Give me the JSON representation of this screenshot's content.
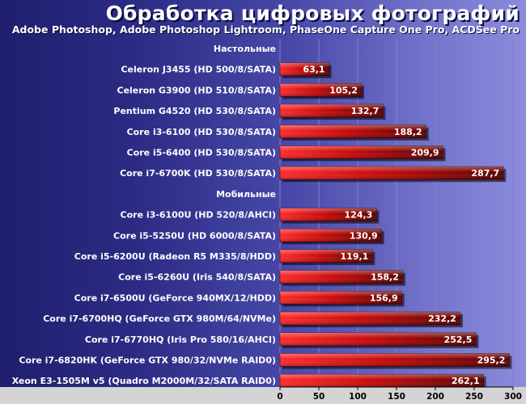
{
  "title": "Обработка цифровых фотографий",
  "subtitle": "Adobe Photoshop, Adobe Photoshop Lightroom, PhaseOne Capture One Pro, ACDSee Pro",
  "colors": {
    "bar_light": "#ff2a2a",
    "bar_dark": "#5a0000",
    "axis_band": "#d4d4d4",
    "gridline": "#8080c8"
  },
  "chart_data": {
    "type": "bar",
    "orientation": "horizontal",
    "title": "Обработка цифровых фотографий",
    "subtitle": "Adobe Photoshop, Adobe Photoshop Lightroom, PhaseOne Capture One Pro, ACDSee Pro",
    "xlim": [
      0,
      300
    ],
    "xticks": [
      0,
      50,
      100,
      150,
      200,
      250,
      300
    ],
    "grid": true,
    "rows": [
      {
        "kind": "group",
        "label": "Настольные"
      },
      {
        "kind": "bar",
        "label": "Celeron J3455 (HD 500/8/SATA)",
        "value": 63.1,
        "value_label": "63,1"
      },
      {
        "kind": "bar",
        "label": "Celeron G3900 (HD 510/8/SATA)",
        "value": 105.2,
        "value_label": "105,2"
      },
      {
        "kind": "bar",
        "label": "Pentium G4520 (HD 530/8/SATA)",
        "value": 132.7,
        "value_label": "132,7"
      },
      {
        "kind": "bar",
        "label": "Core i3-6100 (HD 530/8/SATA)",
        "value": 188.2,
        "value_label": "188,2"
      },
      {
        "kind": "bar",
        "label": "Core i5-6400 (HD 530/8/SATA)",
        "value": 209.9,
        "value_label": "209,9"
      },
      {
        "kind": "bar",
        "label": "Core i7-6700K (HD 530/8/SATA)",
        "value": 287.7,
        "value_label": "287,7"
      },
      {
        "kind": "group",
        "label": "Мобильные"
      },
      {
        "kind": "bar",
        "label": "Core i3-6100U (HD 520/8/AHCI)",
        "value": 124.3,
        "value_label": "124,3"
      },
      {
        "kind": "bar",
        "label": "Core i5-5250U (HD 6000/8/SATA)",
        "value": 130.9,
        "value_label": "130,9"
      },
      {
        "kind": "bar",
        "label": "Core i5-6200U (Radeon R5 M335/8/HDD)",
        "value": 119.1,
        "value_label": "119,1"
      },
      {
        "kind": "bar",
        "label": "Core i5-6260U (Iris 540/8/SATA)",
        "value": 158.2,
        "value_label": "158,2"
      },
      {
        "kind": "bar",
        "label": "Core i7-6500U (GeForce 940MX/12/HDD)",
        "value": 156.9,
        "value_label": "156,9"
      },
      {
        "kind": "bar",
        "label": "Core i7-6700HQ (GeForce GTX 980M/64/NVMe)",
        "value": 232.2,
        "value_label": "232,2"
      },
      {
        "kind": "bar",
        "label": "Core i7-6770HQ (Iris Pro 580/16/AHCI)",
        "value": 252.5,
        "value_label": "252,5"
      },
      {
        "kind": "bar",
        "label": "Core i7-6820HK (GeForce GTX 980/32/NVMe RAID0)",
        "value": 295.2,
        "value_label": "295,2"
      },
      {
        "kind": "bar",
        "label": "Xeon E3-1505M v5 (Quadro M2000M/32/SATA RAID0)",
        "value": 262.1,
        "value_label": "262,1"
      }
    ]
  }
}
